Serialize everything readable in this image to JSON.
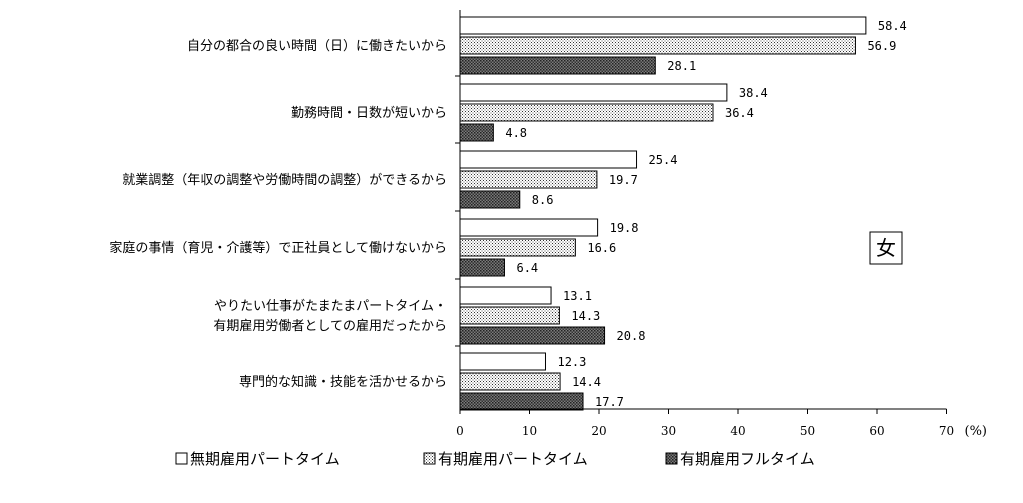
{
  "chart_data": {
    "type": "bar",
    "orientation": "horizontal",
    "categories": [
      [
        "自分の都合の良い時間（日）に働きたいから"
      ],
      [
        "勤務時間・日数が短いから"
      ],
      [
        "就業調整（年収の調整や労働時間の調整）ができるから"
      ],
      [
        "家庭の事情（育児・介護等）で正社員として働けないから"
      ],
      [
        "やりたい仕事がたまたまパートタイム・",
        "有期雇用労働者としての雇用だったから"
      ],
      [
        "専門的な知識・技能を活かせるから"
      ]
    ],
    "series": [
      {
        "name": "無期雇用パートタイム",
        "values": [
          58.4,
          38.4,
          25.4,
          19.8,
          13.1,
          12.3
        ],
        "labels": [
          "58.4",
          "38.4",
          "25.4",
          "19.8",
          "13.1",
          "12.3"
        ],
        "fill": "plain"
      },
      {
        "name": "有期雇用パートタイム",
        "values": [
          56.9,
          36.4,
          19.7,
          16.6,
          14.3,
          14.4
        ],
        "labels": [
          "56.9",
          "36.4",
          "19.7",
          "16.6",
          "14.3",
          "14.4"
        ],
        "fill": "dots"
      },
      {
        "name": "有期雇用フルタイム",
        "values": [
          28.1,
          4.8,
          8.6,
          6.4,
          20.8,
          17.7
        ],
        "labels": [
          "28.1",
          "4.8",
          "8.6",
          "6.4",
          "20.8",
          "17.7"
        ],
        "fill": "dense"
      }
    ],
    "xlim": [
      0,
      70
    ],
    "xticks": [
      0,
      10,
      20,
      30,
      40,
      50,
      60,
      70
    ],
    "x_unit": "(%)",
    "badge": "女",
    "legend_position": "bottom",
    "legend_markers": [
      "□",
      "▩",
      "▩"
    ]
  }
}
